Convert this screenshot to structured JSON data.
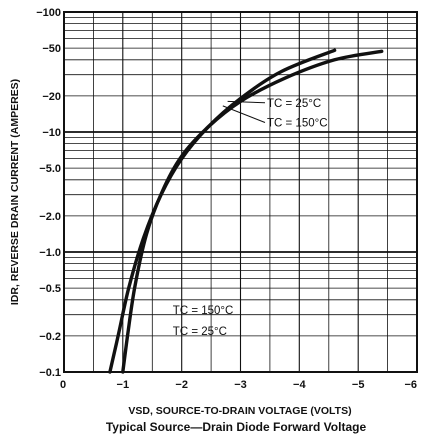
{
  "chart_data": {
    "type": "line",
    "title": "Typical Source—Drain Diode Forward Voltage",
    "xlabel": "VSD, SOURCE-TO-DRAIN VOLTAGE (VOLTS)",
    "ylabel": "IDR, REVERSE DRAIN CURRENT (AMPERES)",
    "x_scale": "linear",
    "y_scale": "log",
    "xlim": [
      0,
      -6
    ],
    "ylim": [
      0.1,
      100
    ],
    "grid": true,
    "x_ticks": [
      {
        "value": 0,
        "label": "0"
      },
      {
        "value": -1,
        "label": "−1"
      },
      {
        "value": -2,
        "label": "−2"
      },
      {
        "value": -3,
        "label": "−3"
      },
      {
        "value": -4,
        "label": "−4"
      },
      {
        "value": -5,
        "label": "−5"
      },
      {
        "value": -6,
        "label": "−6"
      }
    ],
    "y_ticks": [
      {
        "value": 100,
        "label": "−100"
      },
      {
        "value": 50,
        "label": "−50"
      },
      {
        "value": 20,
        "label": "−20"
      },
      {
        "value": 10,
        "label": "−10"
      },
      {
        "value": 5,
        "label": "−5.0"
      },
      {
        "value": 2,
        "label": "−2.0"
      },
      {
        "value": 1,
        "label": "−1.0"
      },
      {
        "value": 0.5,
        "label": "−0.5"
      },
      {
        "value": 0.2,
        "label": "−0.2"
      },
      {
        "value": 0.1,
        "label": "−0.1"
      }
    ],
    "series": [
      {
        "name": "TC = 150°C",
        "x": [
          -0.78,
          -0.92,
          -1.1,
          -1.35,
          -1.65,
          -2.0,
          -2.45,
          -3.0,
          -3.7,
          -4.6
        ],
        "y": [
          0.1,
          0.2,
          0.5,
          1.3,
          3.0,
          6.0,
          11.0,
          19.0,
          32.0,
          48.0
        ]
      },
      {
        "name": "TC = 25°C",
        "x": [
          -1.0,
          -1.08,
          -1.2,
          -1.4,
          -1.67,
          -2.0,
          -2.45,
          -3.0,
          -3.75,
          -4.6,
          -5.4
        ],
        "y": [
          0.1,
          0.2,
          0.5,
          1.4,
          3.2,
          6.3,
          11.0,
          18.0,
          28.0,
          40.0,
          47.0
        ]
      }
    ],
    "annotations": [
      {
        "text": "TC = 25°C",
        "x": -3.45,
        "y": 17.5
      },
      {
        "text": "TC = 150°C",
        "x": -3.45,
        "y": 12.0
      },
      {
        "text": "TC = 150°C",
        "x": -1.85,
        "y": 0.33
      },
      {
        "text": "TC = 25°C",
        "x": -1.85,
        "y": 0.22
      }
    ]
  }
}
